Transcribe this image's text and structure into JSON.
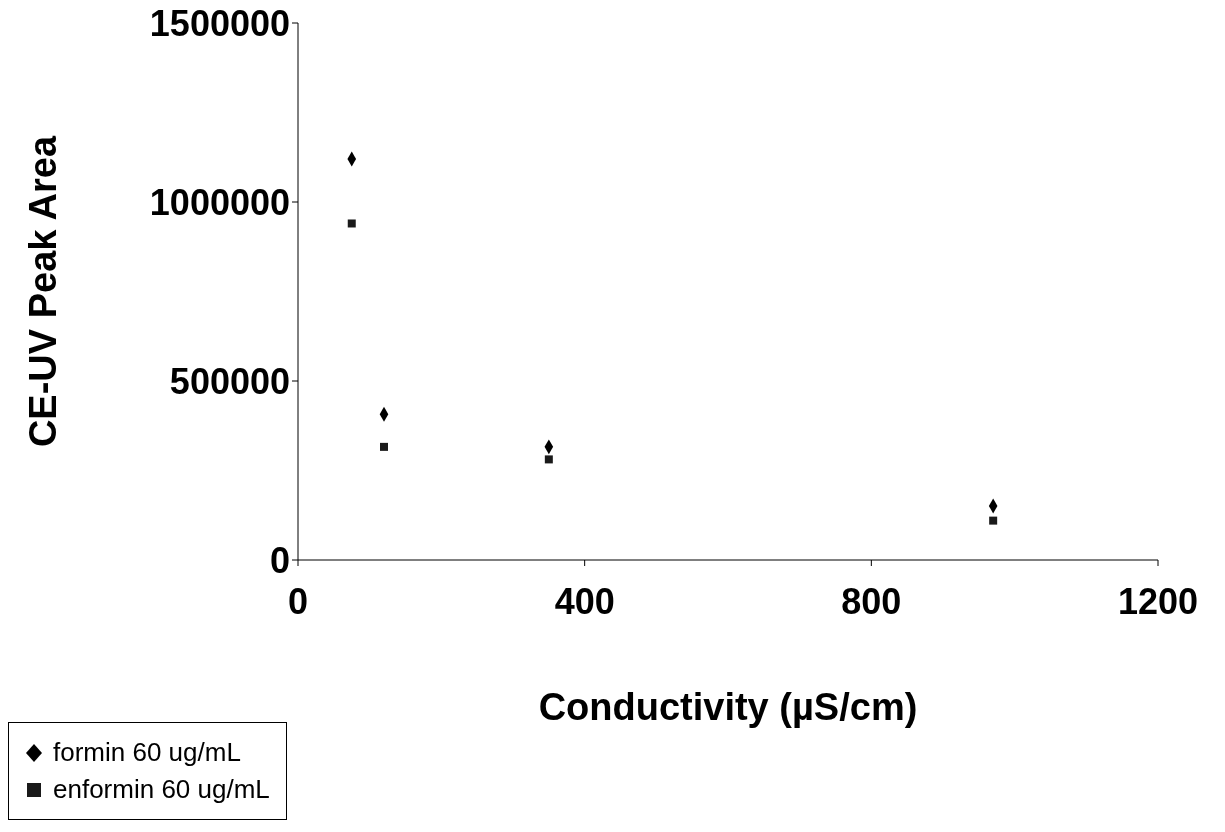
{
  "chart_data": {
    "type": "scatter",
    "xlabel": "Conductivity (µS/cm)",
    "ylabel": "CE-UV Peak Area",
    "series": [
      {
        "name": "formin 60 ug/mL",
        "color": "#000000",
        "marker": "diamond",
        "x": [
          75,
          120,
          350,
          970
        ],
        "values": [
          1120000,
          407000,
          316000,
          151000
        ]
      },
      {
        "name": "enformin 60 ug/mL",
        "color": "#1a1a1a",
        "marker": "square",
        "x": [
          75,
          120,
          350,
          970
        ],
        "values": [
          940000,
          316000,
          281000,
          110000
        ]
      }
    ],
    "xlim": [
      0,
      1200
    ],
    "xticks": [
      0,
      400,
      800,
      1200
    ],
    "ylim": [
      0,
      1500000
    ],
    "yticks": [
      0,
      500000,
      1000000,
      1500000
    ],
    "grid": false,
    "legend": "bottom left"
  }
}
